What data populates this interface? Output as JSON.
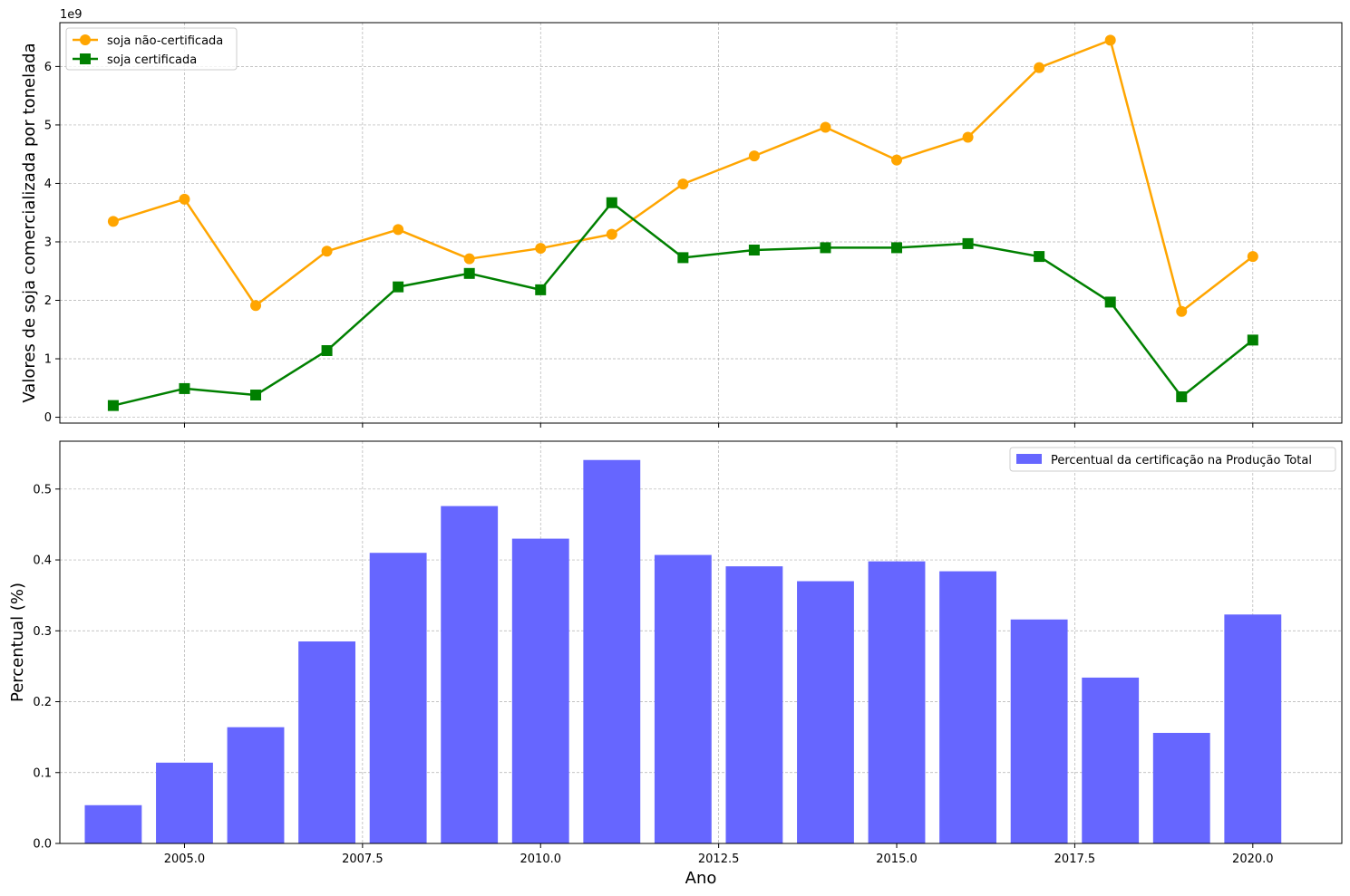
{
  "chart_data": [
    {
      "type": "line",
      "title": "",
      "xlabel": "",
      "ylabel": "Valores de soja comercializada por tonelada",
      "y_offset_label": "1e9",
      "x": [
        2004,
        2005,
        2006,
        2007,
        2008,
        2009,
        2010,
        2011,
        2012,
        2013,
        2014,
        2015,
        2016,
        2017,
        2018,
        2019,
        2020
      ],
      "xlim": [
        2003.25,
        2021.25
      ],
      "ylim": [
        -0.1,
        6.75
      ],
      "y_scale": 1000000000,
      "x_ticks": [
        2005.0,
        2007.5,
        2010.0,
        2012.5,
        2015.0,
        2017.5,
        2020.0
      ],
      "y_ticks": [
        0,
        1,
        2,
        3,
        4,
        5,
        6
      ],
      "y_tick_labels": [
        "0",
        "1",
        "2",
        "3",
        "4",
        "5",
        "6"
      ],
      "grid": true,
      "legend_position": "top-left",
      "series": [
        {
          "name": "soja não-certificada",
          "color": "#FFA500",
          "marker": "circle",
          "values": [
            3.35,
            3.73,
            1.91,
            2.84,
            3.21,
            2.71,
            2.89,
            3.13,
            3.99,
            4.47,
            4.96,
            4.4,
            4.79,
            5.98,
            6.45,
            1.81,
            2.75
          ]
        },
        {
          "name": "soja certificada",
          "color": "#008000",
          "marker": "square",
          "values": [
            0.2,
            0.49,
            0.38,
            1.14,
            2.23,
            2.46,
            2.18,
            3.67,
            2.73,
            2.86,
            2.9,
            2.9,
            2.97,
            2.75,
            1.97,
            0.35,
            1.32
          ]
        }
      ]
    },
    {
      "type": "bar",
      "title": "",
      "xlabel": "Ano",
      "ylabel": "Percentual (%)",
      "categories": [
        2004,
        2005,
        2006,
        2007,
        2008,
        2009,
        2010,
        2011,
        2012,
        2013,
        2014,
        2015,
        2016,
        2017,
        2018,
        2019,
        2020
      ],
      "xlim": [
        2003.25,
        2021.25
      ],
      "ylim": [
        0,
        0.5675
      ],
      "x_ticks": [
        2005.0,
        2007.5,
        2010.0,
        2012.5,
        2015.0,
        2017.5,
        2020.0
      ],
      "x_tick_labels": [
        "2005.0",
        "2007.5",
        "2010.0",
        "2012.5",
        "2015.0",
        "2017.5",
        "2020.0"
      ],
      "y_ticks": [
        0,
        0.1,
        0.2,
        0.3,
        0.4,
        0.5
      ],
      "y_tick_labels": [
        "0.0",
        "0.1",
        "0.2",
        "0.3",
        "0.4",
        "0.5"
      ],
      "grid": true,
      "legend_position": "top-right",
      "series": [
        {
          "name": "Percentual da certificação na Produção Total",
          "color": "#6666FF",
          "values": [
            0.054,
            0.114,
            0.164,
            0.285,
            0.41,
            0.476,
            0.43,
            0.541,
            0.407,
            0.391,
            0.37,
            0.398,
            0.384,
            0.316,
            0.234,
            0.156,
            0.323
          ]
        }
      ]
    }
  ]
}
